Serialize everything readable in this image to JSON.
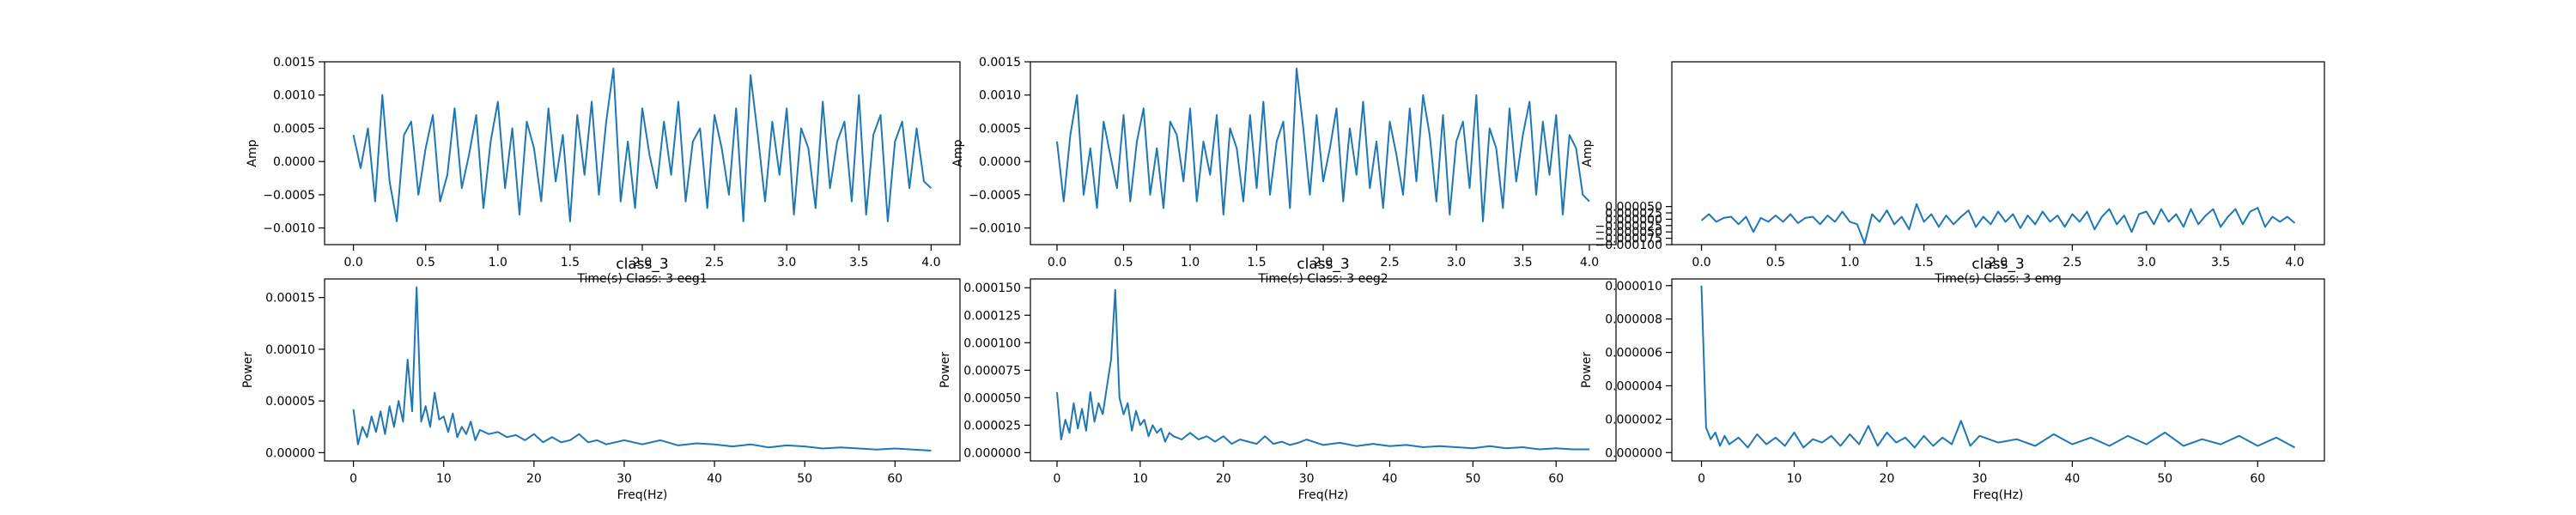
{
  "figure": {
    "line_color": "#1f77b4"
  },
  "chart_data": [
    {
      "type": "line",
      "title": "class_3",
      "xlabel": "Time(s) Class: 3 eeg1",
      "ylabel": "Amp",
      "xlim": [
        -0.2,
        4.2
      ],
      "ylim": [
        -0.00125,
        0.0015
      ],
      "xticks": [
        0.0,
        0.5,
        1.0,
        1.5,
        2.0,
        2.5,
        3.0,
        3.5,
        4.0
      ],
      "xtick_labels": [
        "0.0",
        "0.5",
        "1.0",
        "1.5",
        "2.0",
        "2.5",
        "3.0",
        "3.5",
        "4.0"
      ],
      "yticks": [
        -0.001,
        -0.0005,
        0.0,
        0.0005,
        0.001,
        0.0015
      ],
      "ytick_labels": [
        "−0.0010",
        "−0.0005",
        "0.0000",
        "0.0005",
        "0.0010",
        "0.0015"
      ],
      "x": [
        0.0,
        0.05,
        0.1,
        0.15,
        0.2,
        0.25,
        0.3,
        0.35,
        0.4,
        0.45,
        0.5,
        0.55,
        0.6,
        0.65,
        0.7,
        0.75,
        0.8,
        0.85,
        0.9,
        0.95,
        1.0,
        1.05,
        1.1,
        1.15,
        1.2,
        1.25,
        1.3,
        1.35,
        1.4,
        1.45,
        1.5,
        1.55,
        1.6,
        1.65,
        1.7,
        1.75,
        1.8,
        1.85,
        1.9,
        1.95,
        2.0,
        2.05,
        2.1,
        2.15,
        2.2,
        2.25,
        2.3,
        2.35,
        2.4,
        2.45,
        2.5,
        2.55,
        2.6,
        2.65,
        2.7,
        2.75,
        2.8,
        2.85,
        2.9,
        2.95,
        3.0,
        3.05,
        3.1,
        3.15,
        3.2,
        3.25,
        3.3,
        3.35,
        3.4,
        3.45,
        3.5,
        3.55,
        3.6,
        3.65,
        3.7,
        3.75,
        3.8,
        3.85,
        3.9,
        3.95,
        4.0
      ],
      "values": [
        0.0004,
        -0.0001,
        0.0005,
        -0.0006,
        0.001,
        -0.0003,
        -0.0009,
        0.0004,
        0.0006,
        -0.0005,
        0.0002,
        0.0007,
        -0.0006,
        -0.0002,
        0.0008,
        -0.0004,
        0.0001,
        0.0007,
        -0.0007,
        0.0003,
        0.0009,
        -0.0004,
        0.0005,
        -0.0008,
        0.0006,
        0.0002,
        -0.0006,
        0.0008,
        -0.0003,
        0.0004,
        -0.0009,
        0.0007,
        -0.0002,
        0.0009,
        -0.0005,
        0.0006,
        0.0014,
        -0.0006,
        0.0003,
        -0.0007,
        0.0008,
        0.0001,
        -0.0004,
        0.0006,
        -0.0002,
        0.0009,
        -0.0006,
        0.0003,
        0.0005,
        -0.0007,
        0.0007,
        0.0002,
        -0.0005,
        0.0008,
        -0.0009,
        0.0013,
        0.0004,
        -0.0006,
        0.0006,
        -0.0002,
        0.0008,
        -0.0008,
        0.0005,
        0.0002,
        -0.0007,
        0.0009,
        -0.0004,
        0.0003,
        0.0006,
        -0.0006,
        0.001,
        -0.0008,
        0.0004,
        0.0007,
        -0.0009,
        0.0003,
        0.0006,
        -0.0004,
        0.0005,
        -0.0003,
        -0.0004
      ]
    },
    {
      "type": "line",
      "title": "class_3",
      "xlabel": "Time(s) Class: 3 eeg2",
      "ylabel": "Amp",
      "xlim": [
        -0.2,
        4.2
      ],
      "ylim": [
        -0.00125,
        0.0015
      ],
      "xticks": [
        0.0,
        0.5,
        1.0,
        1.5,
        2.0,
        2.5,
        3.0,
        3.5,
        4.0
      ],
      "xtick_labels": [
        "0.0",
        "0.5",
        "1.0",
        "1.5",
        "2.0",
        "2.5",
        "3.0",
        "3.5",
        "4.0"
      ],
      "yticks": [
        -0.001,
        -0.0005,
        0.0,
        0.0005,
        0.001,
        0.0015
      ],
      "ytick_labels": [
        "−0.0010",
        "−0.0005",
        "0.0000",
        "0.0005",
        "0.0010",
        "0.0015"
      ],
      "x": [
        0.0,
        0.05,
        0.1,
        0.15,
        0.2,
        0.25,
        0.3,
        0.35,
        0.4,
        0.45,
        0.5,
        0.55,
        0.6,
        0.65,
        0.7,
        0.75,
        0.8,
        0.85,
        0.9,
        0.95,
        1.0,
        1.05,
        1.1,
        1.15,
        1.2,
        1.25,
        1.3,
        1.35,
        1.4,
        1.45,
        1.5,
        1.55,
        1.6,
        1.65,
        1.7,
        1.75,
        1.8,
        1.85,
        1.9,
        1.95,
        2.0,
        2.05,
        2.1,
        2.15,
        2.2,
        2.25,
        2.3,
        2.35,
        2.4,
        2.45,
        2.5,
        2.55,
        2.6,
        2.65,
        2.7,
        2.75,
        2.8,
        2.85,
        2.9,
        2.95,
        3.0,
        3.05,
        3.1,
        3.15,
        3.2,
        3.25,
        3.3,
        3.35,
        3.4,
        3.45,
        3.5,
        3.55,
        3.6,
        3.65,
        3.7,
        3.75,
        3.8,
        3.85,
        3.9,
        3.95,
        4.0
      ],
      "values": [
        0.0003,
        -0.0006,
        0.0004,
        0.001,
        -0.0005,
        0.0002,
        -0.0007,
        0.0006,
        0.0001,
        -0.0004,
        0.0007,
        -0.0006,
        0.0003,
        0.0008,
        -0.0005,
        0.0002,
        -0.0007,
        0.0006,
        0.0004,
        -0.0003,
        0.0008,
        -0.0006,
        0.0003,
        -0.0002,
        0.0007,
        -0.0008,
        0.0005,
        0.0002,
        -0.0006,
        0.0007,
        -0.0004,
        0.0009,
        -0.0005,
        0.0003,
        0.0006,
        -0.0007,
        0.0014,
        0.0005,
        -0.0005,
        0.0007,
        -0.0003,
        0.0002,
        0.0008,
        -0.0006,
        0.0005,
        -0.0002,
        0.0009,
        -0.0004,
        0.0003,
        -0.0007,
        0.0006,
        0.0001,
        -0.0005,
        0.0008,
        -0.0003,
        0.001,
        0.0004,
        -0.0006,
        0.0007,
        -0.0008,
        0.0003,
        0.0006,
        -0.0004,
        0.001,
        -0.0009,
        0.0005,
        0.0002,
        -0.0007,
        0.0008,
        -0.0003,
        0.0004,
        0.0009,
        -0.0005,
        0.0006,
        -0.0002,
        0.0007,
        -0.0008,
        0.0004,
        0.0002,
        -0.0005,
        -0.0006
      ]
    },
    {
      "type": "line",
      "title": "class_3",
      "xlabel": "Time(s) Class: 3 emg",
      "ylabel": "Amp",
      "xlim": [
        -0.2,
        4.2
      ],
      "ylim": [
        -0.0001,
        0.00062
      ],
      "xticks": [
        0.0,
        0.5,
        1.0,
        1.5,
        2.0,
        2.5,
        3.0,
        3.5,
        4.0
      ],
      "xtick_labels": [
        "0.0",
        "0.5",
        "1.0",
        "1.5",
        "2.0",
        "2.5",
        "3.0",
        "3.5",
        "4.0"
      ],
      "yticks": [
        -0.0001,
        -7.5e-05,
        -5e-05,
        -2.5e-05,
        0.0,
        2.5e-05,
        5e-05
      ],
      "ytick_labels": [
        "−0.000100",
        "−0.000075",
        "−0.000050",
        "−0.000025",
        "0.000000",
        "0.000025",
        "0.000050"
      ],
      "x": [
        0.0,
        0.05,
        0.1,
        0.15,
        0.2,
        0.25,
        0.3,
        0.35,
        0.4,
        0.45,
        0.5,
        0.55,
        0.6,
        0.65,
        0.7,
        0.75,
        0.8,
        0.85,
        0.9,
        0.95,
        1.0,
        1.05,
        1.1,
        1.15,
        1.2,
        1.25,
        1.3,
        1.35,
        1.4,
        1.45,
        1.5,
        1.55,
        1.6,
        1.65,
        1.7,
        1.75,
        1.8,
        1.85,
        1.9,
        1.95,
        2.0,
        2.05,
        2.1,
        2.15,
        2.2,
        2.25,
        2.3,
        2.35,
        2.4,
        2.45,
        2.5,
        2.55,
        2.6,
        2.65,
        2.7,
        2.75,
        2.8,
        2.85,
        2.9,
        2.95,
        3.0,
        3.05,
        3.1,
        3.15,
        3.2,
        3.25,
        3.3,
        3.35,
        3.4,
        3.45,
        3.5,
        3.55,
        3.6,
        3.65,
        3.7,
        3.75,
        3.8,
        3.85,
        3.9,
        3.95,
        4.0
      ],
      "values": [
        -5e-06,
        2e-05,
        -1e-05,
        5e-06,
        1e-05,
        -2e-05,
        1e-05,
        -5e-05,
        5e-06,
        -1e-05,
        1.5e-05,
        -1e-05,
        2e-05,
        -1.5e-05,
        5e-06,
        1e-05,
        -2e-05,
        1.5e-05,
        -1e-05,
        3e-05,
        -1e-05,
        -2e-05,
        -9.5e-05,
        2e-05,
        -1e-05,
        3.5e-05,
        -2e-05,
        1e-05,
        -4e-05,
        6e-05,
        -1e-05,
        2e-05,
        -3e-05,
        1.5e-05,
        -2e-05,
        1e-05,
        3.5e-05,
        -3e-05,
        1e-05,
        -2e-05,
        3e-05,
        -1e-05,
        2e-05,
        -3.5e-05,
        1.5e-05,
        -2e-05,
        3e-05,
        -1e-05,
        1.5e-05,
        -3e-05,
        2e-05,
        -1e-05,
        3e-05,
        -4e-05,
        1e-05,
        4e-05,
        -2e-05,
        1.5e-05,
        -5e-05,
        2e-05,
        3e-05,
        -2e-05,
        4e-05,
        -1e-05,
        2e-05,
        -3e-05,
        4e-05,
        -2e-05,
        1.5e-05,
        4e-05,
        -3e-05,
        1e-05,
        4e-05,
        -2e-05,
        3e-05,
        4.5e-05,
        -3e-05,
        1e-05,
        -1e-05,
        1e-05,
        -1.5e-05
      ]
    },
    {
      "type": "line",
      "title": "",
      "xlabel": "Freq(Hz)",
      "ylabel": "Power",
      "xlim": [
        -3.2,
        67.2
      ],
      "ylim": [
        -8e-06,
        0.000168
      ],
      "xticks": [
        0,
        10,
        20,
        30,
        40,
        50,
        60
      ],
      "xtick_labels": [
        "0",
        "10",
        "20",
        "30",
        "40",
        "50",
        "60"
      ],
      "yticks": [
        0.0,
        5e-05,
        0.0001,
        0.00015
      ],
      "ytick_labels": [
        "0.00000",
        "0.00005",
        "0.00010",
        "0.00015"
      ],
      "x": [
        0,
        0.5,
        1,
        1.5,
        2,
        2.5,
        3,
        3.5,
        4,
        4.5,
        5,
        5.5,
        6,
        6.5,
        7,
        7.5,
        8,
        8.5,
        9,
        9.5,
        10,
        10.5,
        11,
        11.5,
        12,
        12.5,
        13,
        13.5,
        14,
        15,
        16,
        17,
        18,
        19,
        20,
        21,
        22,
        23,
        24,
        25,
        26,
        27,
        28,
        29,
        30,
        32,
        34,
        36,
        38,
        40,
        42,
        44,
        46,
        48,
        50,
        52,
        54,
        56,
        58,
        60,
        62,
        64
      ],
      "values": [
        4.2e-05,
        8e-06,
        2.5e-05,
        1.5e-05,
        3.5e-05,
        2e-05,
        4e-05,
        1.8e-05,
        4.5e-05,
        2.5e-05,
        5e-05,
        3e-05,
        9e-05,
        4e-05,
        0.00016,
        3e-05,
        4.5e-05,
        2.5e-05,
        5.8e-05,
        3.2e-05,
        3.5e-05,
        2e-05,
        3.8e-05,
        1.5e-05,
        2.5e-05,
        1.8e-05,
        3e-05,
        1.2e-05,
        2.2e-05,
        1.8e-05,
        2e-05,
        1.5e-05,
        1.7e-05,
        1.2e-05,
        1.8e-05,
        1e-05,
        1.5e-05,
        1e-05,
        1.2e-05,
        1.8e-05,
        1e-05,
        1.2e-05,
        8e-06,
        1e-05,
        1.2e-05,
        8e-06,
        1.2e-05,
        7e-06,
        9e-06,
        8e-06,
        6e-06,
        8e-06,
        5e-06,
        7e-06,
        6e-06,
        4e-06,
        5e-06,
        4e-06,
        3e-06,
        4e-06,
        3e-06,
        2e-06
      ]
    },
    {
      "type": "line",
      "title": "",
      "xlabel": "Freq(Hz)",
      "ylabel": "Power",
      "xlim": [
        -3.2,
        67.2
      ],
      "ylim": [
        -7.5e-06,
        0.000158
      ],
      "xticks": [
        0,
        10,
        20,
        30,
        40,
        50,
        60
      ],
      "xtick_labels": [
        "0",
        "10",
        "20",
        "30",
        "40",
        "50",
        "60"
      ],
      "yticks": [
        0.0,
        2.5e-05,
        5e-05,
        7.5e-05,
        0.0001,
        0.000125,
        0.00015
      ],
      "ytick_labels": [
        "0.000000",
        "0.000025",
        "0.000050",
        "0.000075",
        "0.000100",
        "0.000125",
        "0.000150"
      ],
      "x": [
        0,
        0.5,
        1,
        1.5,
        2,
        2.5,
        3,
        3.5,
        4,
        4.5,
        5,
        5.5,
        6,
        6.5,
        7,
        7.5,
        8,
        8.5,
        9,
        9.5,
        10,
        10.5,
        11,
        11.5,
        12,
        12.5,
        13,
        13.5,
        14,
        15,
        16,
        17,
        18,
        19,
        20,
        21,
        22,
        23,
        24,
        25,
        26,
        27,
        28,
        29,
        30,
        32,
        34,
        36,
        38,
        40,
        42,
        44,
        46,
        48,
        50,
        52,
        54,
        56,
        58,
        60,
        62,
        64
      ],
      "values": [
        5.5e-05,
        1.2e-05,
        3e-05,
        1.8e-05,
        4.5e-05,
        2.2e-05,
        4e-05,
        2e-05,
        5.5e-05,
        2.8e-05,
        4.5e-05,
        3.5e-05,
        6e-05,
        8.5e-05,
        0.000148,
        5e-05,
        3.5e-05,
        4.5e-05,
        2e-05,
        3.8e-05,
        2.5e-05,
        3e-05,
        1.5e-05,
        2.5e-05,
        1.8e-05,
        2.2e-05,
        1e-05,
        1.8e-05,
        1.5e-05,
        1.2e-05,
        1.8e-05,
        1.2e-05,
        1.5e-05,
        1e-05,
        1.5e-05,
        8e-06,
        1.2e-05,
        1e-05,
        8e-06,
        1.5e-05,
        8e-06,
        1e-05,
        7e-06,
        9e-06,
        1.2e-05,
        7e-06,
        9e-06,
        6e-06,
        8e-06,
        6e-06,
        7e-06,
        5e-06,
        6e-06,
        5e-06,
        4e-06,
        6e-06,
        4e-06,
        5e-06,
        3e-06,
        4e-06,
        3e-06,
        3e-06
      ]
    },
    {
      "type": "line",
      "title": "",
      "xlabel": "Freq(Hz)",
      "ylabel": "Power",
      "xlim": [
        -3.2,
        67.2
      ],
      "ylim": [
        -5e-07,
        1.04e-05
      ],
      "xticks": [
        0,
        10,
        20,
        30,
        40,
        50,
        60
      ],
      "xtick_labels": [
        "0",
        "10",
        "20",
        "30",
        "40",
        "50",
        "60"
      ],
      "yticks": [
        0.0,
        2e-06,
        4e-06,
        6e-06,
        8e-06,
        1e-05
      ],
      "ytick_labels": [
        "0.000000",
        "0.000002",
        "0.000004",
        "0.000006",
        "0.000008",
        "0.000010"
      ],
      "x": [
        0,
        0.5,
        1,
        1.5,
        2,
        2.5,
        3,
        4,
        5,
        6,
        7,
        8,
        9,
        10,
        11,
        12,
        13,
        14,
        15,
        16,
        17,
        18,
        19,
        20,
        21,
        22,
        23,
        24,
        25,
        26,
        27,
        28,
        29,
        30,
        32,
        34,
        36,
        38,
        40,
        42,
        44,
        46,
        48,
        50,
        52,
        54,
        56,
        58,
        60,
        62,
        64
      ],
      "values": [
        1e-05,
        1.5e-06,
        8e-07,
        1.2e-06,
        4e-07,
        1e-06,
        5e-07,
        9e-07,
        3e-07,
        1.1e-06,
        5e-07,
        9e-07,
        4e-07,
        1.2e-06,
        3e-07,
        8e-07,
        6e-07,
        1e-06,
        4e-07,
        1.1e-06,
        5e-07,
        1.6e-06,
        4e-07,
        1.2e-06,
        6e-07,
        9e-07,
        3e-07,
        1e-06,
        4e-07,
        9e-07,
        5e-07,
        1.9e-06,
        4e-07,
        1e-06,
        6e-07,
        8e-07,
        4e-07,
        1.1e-06,
        5e-07,
        9e-07,
        4e-07,
        1e-06,
        5e-07,
        1.2e-06,
        4e-07,
        8e-07,
        5e-07,
        1e-06,
        4e-07,
        9e-07,
        3e-07
      ]
    }
  ]
}
